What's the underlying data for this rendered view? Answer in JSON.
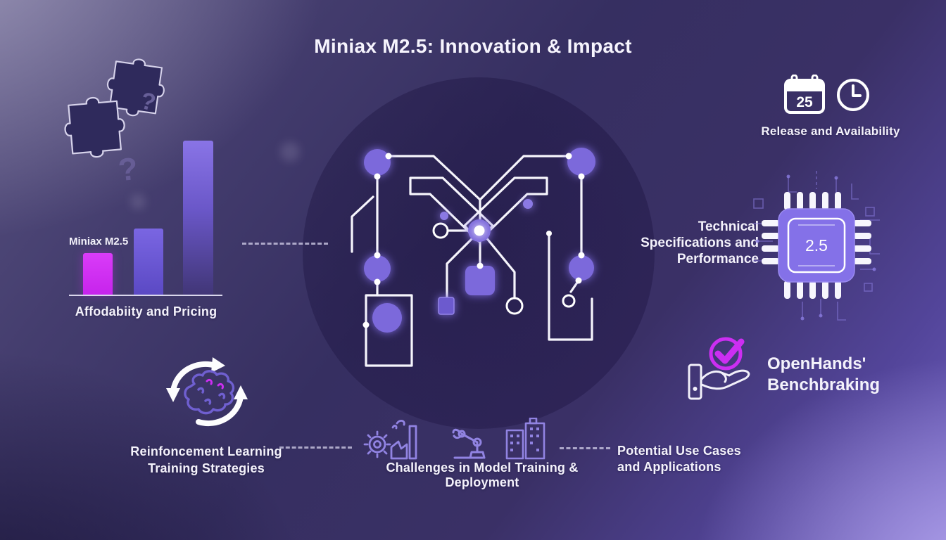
{
  "title": "Miniax M2.5: Innovation & Impact",
  "affordability": {
    "bar_label": "Miniax M2.5",
    "caption": "Affodabiity and Pricing"
  },
  "release": {
    "calendar_day": "25",
    "caption": "Release and Availability"
  },
  "technical": {
    "line1": "Technical",
    "line2": "Specifications and",
    "line3": "Performance",
    "chip_value": "2.5"
  },
  "openhands": {
    "line1": "OpenHands'",
    "line2": "Benchbraking"
  },
  "reinforcement": {
    "line1": "Reinfoncement Learning",
    "line2": "Training Strategies"
  },
  "challenges": {
    "caption": "Challenges in Model Training & Deployment"
  },
  "potential": {
    "line1": "Potential Use Cases",
    "line2": "and Applications"
  },
  "decor": {
    "question_mark": "?"
  },
  "colors": {
    "magenta_accent": "#cc2ef2",
    "purple_node": "#7c69db",
    "chip_body": "#8471e8",
    "icon_outline": "#9183e2",
    "text": "#f4f2fb"
  },
  "chart_data": {
    "type": "bar",
    "title": "Affodabiity and Pricing",
    "categories": [
      "Miniax M2.5",
      "unlabeled-bar-2",
      "unlabeled-bar-3"
    ],
    "values": [
      27,
      43,
      100
    ],
    "value_unit": "relative bar height, % of tallest bar (no numeric axis shown)",
    "bar_colors": [
      "#cc2ef2",
      "#6b58d8",
      "gradient #8974e6 to #413677"
    ],
    "xlabel": "",
    "ylabel": "",
    "legend": false,
    "gridlines": false
  }
}
